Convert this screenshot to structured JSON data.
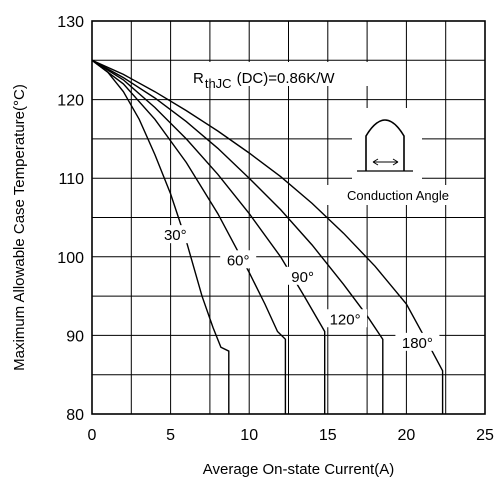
{
  "chart_data": {
    "type": "line",
    "xlabel": "Average On-state Current(A)",
    "ylabel": "Maximum Allowable Case Temperature(°C)",
    "xlim": [
      0,
      25
    ],
    "ylim": [
      80,
      130
    ],
    "xticks": [
      "0",
      "5",
      "10",
      "15",
      "20",
      "25"
    ],
    "yticks": [
      "80",
      "90",
      "100",
      "110",
      "120",
      "130"
    ],
    "grid": true,
    "annotations": {
      "rth_main": "R",
      "rth_sub": "thJC",
      "rth_rest": "(DC)=0.86K/W",
      "conduction_angle": "Conduction Angle"
    },
    "series": [
      {
        "name": "30°",
        "x": [
          0,
          1,
          2,
          3,
          4,
          5,
          6,
          7,
          7.7,
          8.2,
          8.7,
          8.7
        ],
        "y": [
          125,
          123.5,
          121,
          117.5,
          113,
          108,
          102,
          95,
          91,
          88.5,
          88,
          80
        ]
      },
      {
        "name": "60°",
        "x": [
          0,
          2,
          4,
          6,
          8,
          10,
          11,
          11.8,
          12.3,
          12.3
        ],
        "y": [
          125,
          122,
          117.5,
          112,
          105.5,
          98,
          94,
          90.5,
          89.5,
          80
        ]
      },
      {
        "name": "90°",
        "x": [
          0,
          2,
          4,
          6,
          8,
          10,
          12,
          13.5,
          14.8,
          14.8
        ],
        "y": [
          125,
          122.5,
          119,
          115,
          110.5,
          105.5,
          100,
          95,
          90.5,
          80
        ]
      },
      {
        "name": "120°",
        "x": [
          0,
          2,
          4,
          6,
          8,
          10,
          12,
          14,
          16,
          17.5,
          18.5,
          18.5
        ],
        "y": [
          125,
          122.8,
          120.2,
          117.2,
          113.8,
          110,
          106,
          101.5,
          96.5,
          92.5,
          89.5,
          80
        ]
      },
      {
        "name": "180°",
        "x": [
          0,
          2,
          4,
          6,
          8,
          10,
          12,
          14,
          16,
          18,
          20,
          21.5,
          22.3,
          22.3
        ],
        "y": [
          125,
          123.2,
          121,
          118.6,
          116,
          113.2,
          110.2,
          106.8,
          103,
          98.8,
          94,
          88.5,
          85.5,
          80
        ]
      }
    ],
    "series_labels": [
      {
        "text": "30°",
        "x": 5.3,
        "y": 102.5
      },
      {
        "text": "60°",
        "x": 9.3,
        "y": 99.3
      },
      {
        "text": "90°",
        "x": 13.4,
        "y": 97.2
      },
      {
        "text": "120°",
        "x": 16.1,
        "y": 91.8
      },
      {
        "text": "180°",
        "x": 20.7,
        "y": 88.8
      }
    ]
  }
}
